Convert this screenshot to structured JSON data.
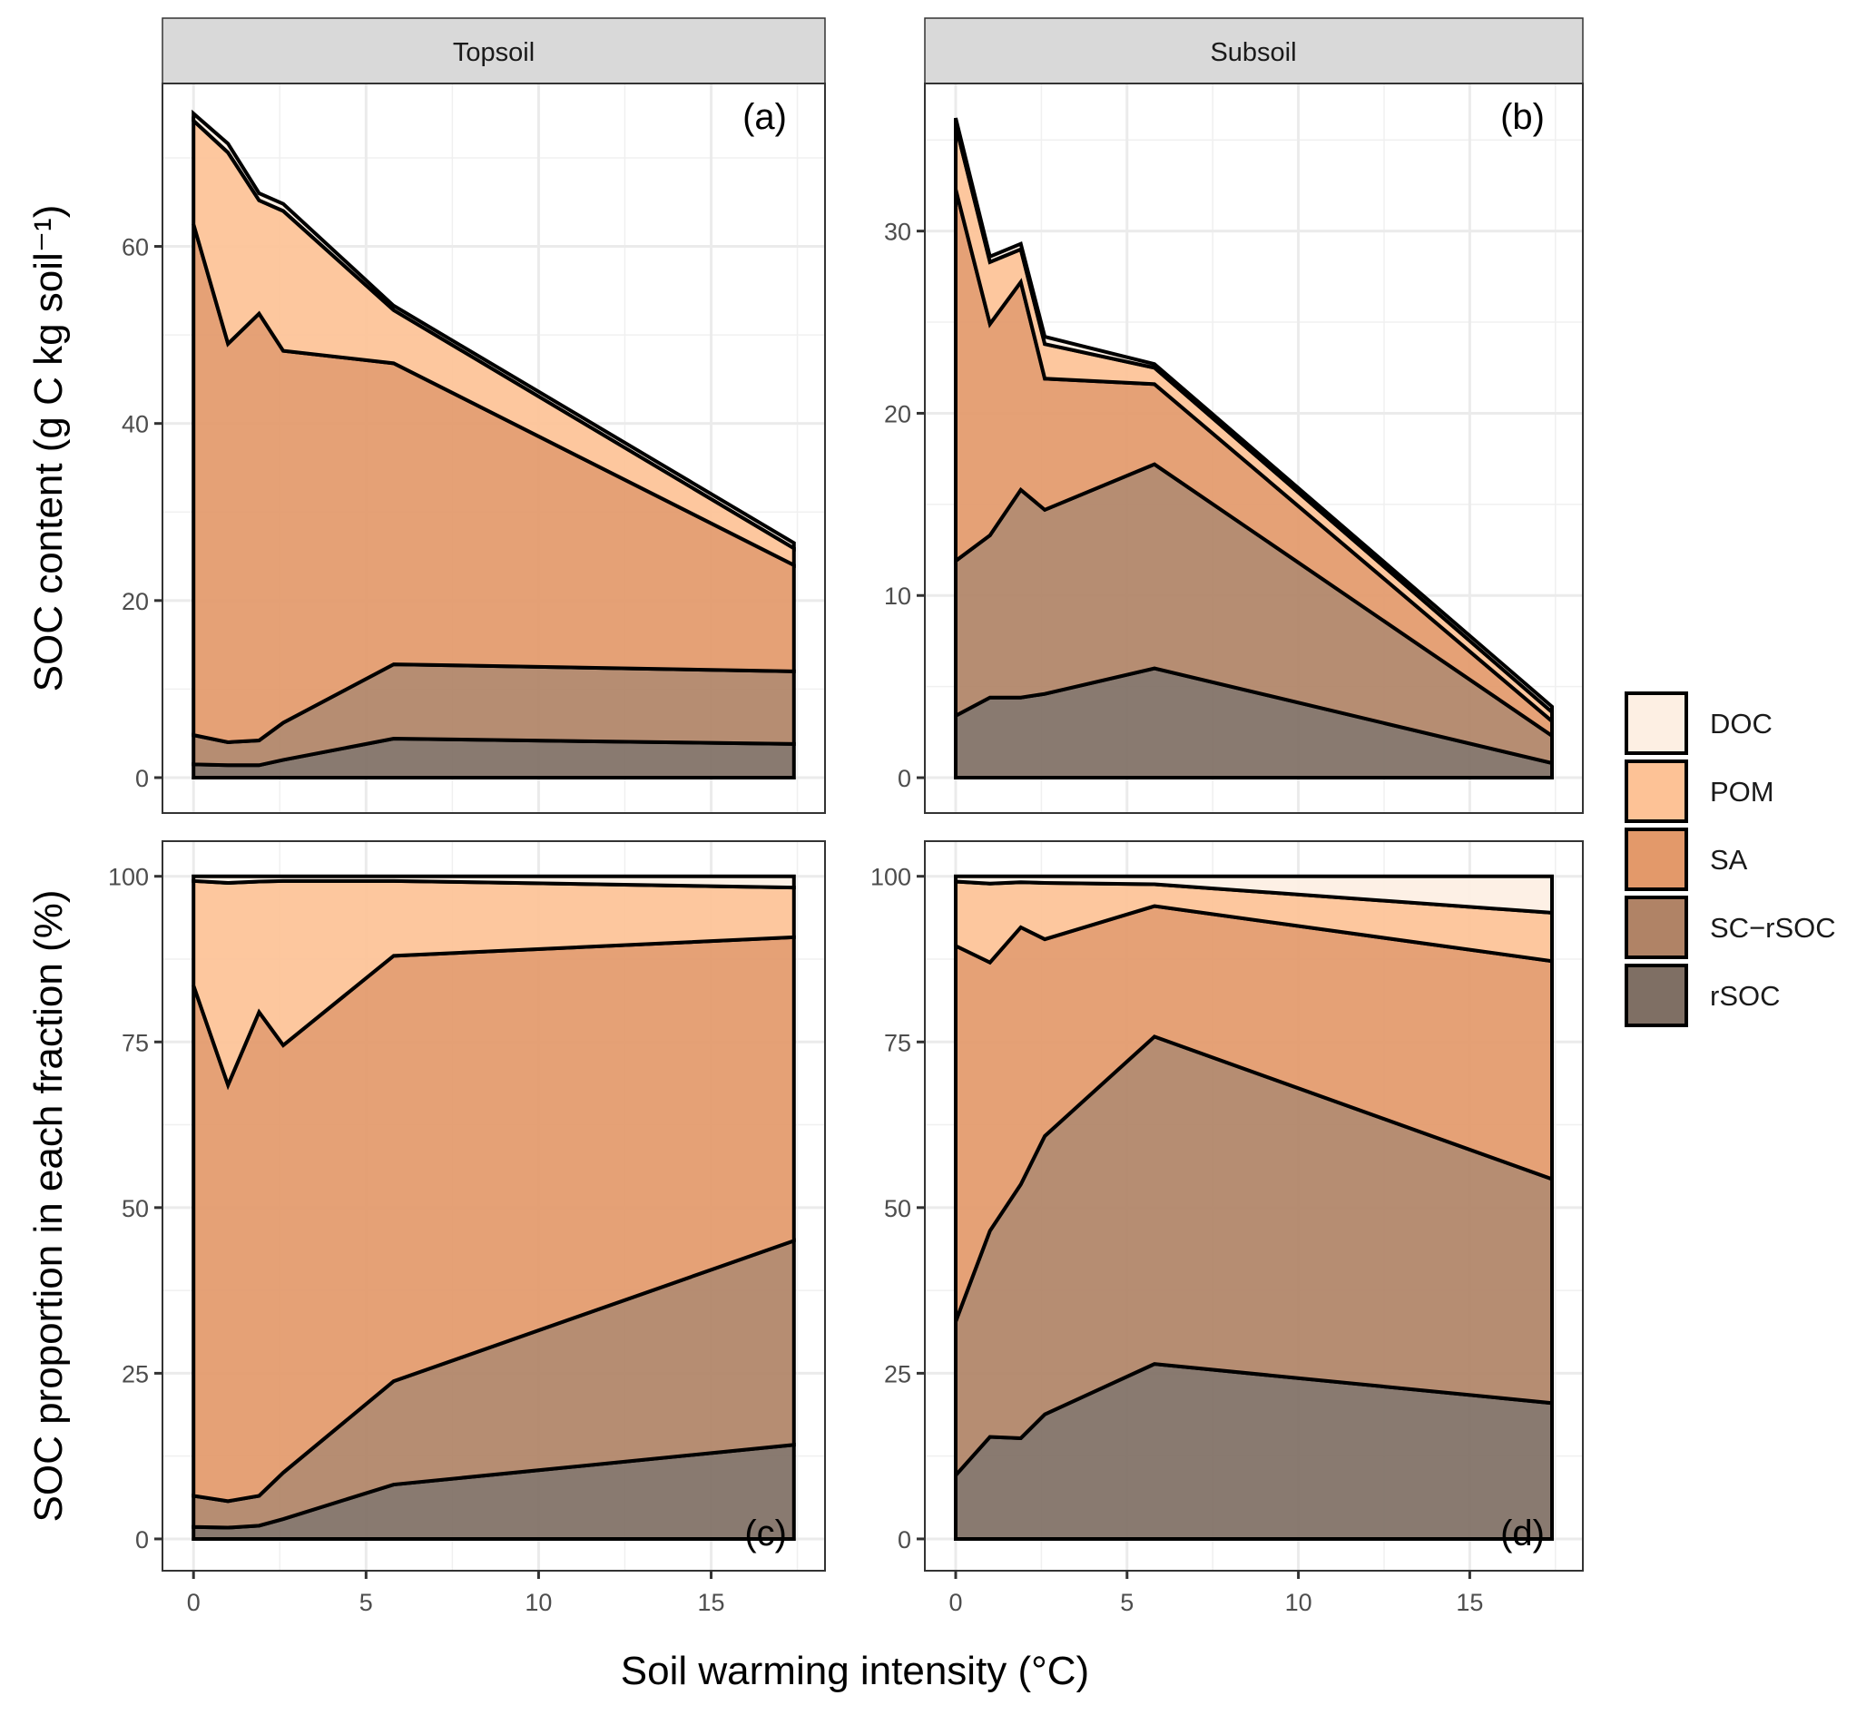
{
  "chart_data": {
    "type": "area",
    "stacked": true,
    "xlabel": "Soil warming intensity (°C)",
    "ylabel_top": "SOC content (g C kg soil⁻¹)",
    "ylabel_bottom": "SOC proportion in each fraction (%)",
    "xlim": [
      -0.9,
      18.3
    ],
    "x_ticks": [
      0,
      5,
      10,
      15
    ],
    "grid": true,
    "legend_placement": "right",
    "legend": [
      {
        "name": "DOC",
        "color": "#fdefe3"
      },
      {
        "name": "POM",
        "color": "#fdc296"
      },
      {
        "name": "SA",
        "color": "#e3996a"
      },
      {
        "name": "SC−rSOC",
        "color": "#b08366"
      },
      {
        "name": "rSOC",
        "color": "#7f6f64"
      }
    ],
    "x": [
      0,
      1,
      1.9,
      2.6,
      5.8,
      17.4
    ],
    "panels": [
      {
        "tag": "(a)",
        "strip": "Topsoil",
        "row": "content",
        "ylim": [
          -4,
          78.4
        ],
        "y_ticks": [
          0,
          20,
          40,
          60
        ],
        "series": [
          {
            "name": "rSOC",
            "values": [
              1.5,
              1.4,
              1.4,
              2.0,
              4.4,
              3.8
            ]
          },
          {
            "name": "SC−rSOC",
            "values": [
              3.3,
              2.6,
              2.8,
              4.2,
              8.4,
              8.2
            ]
          },
          {
            "name": "SA",
            "values": [
              57.7,
              45.0,
              48.2,
              42.0,
              34.0,
              12.0
            ]
          },
          {
            "name": "POM",
            "values": [
              11.7,
              21.6,
              12.8,
              15.8,
              6.0,
              1.9
            ]
          },
          {
            "name": "DOC",
            "values": [
              0.8,
              1.0,
              0.8,
              0.8,
              0.5,
              0.6
            ]
          }
        ]
      },
      {
        "tag": "(b)",
        "strip": "Subsoil",
        "row": "content",
        "ylim": [
          -1.94,
          38.1
        ],
        "y_ticks": [
          0,
          10,
          20,
          30
        ],
        "series": [
          {
            "name": "rSOC",
            "values": [
              3.4,
              4.4,
              4.4,
              4.6,
              6.0,
              0.8
            ]
          },
          {
            "name": "SC−rSOC",
            "values": [
              8.5,
              8.9,
              11.4,
              10.1,
              11.2,
              1.5
            ]
          },
          {
            "name": "SA",
            "values": [
              20.4,
              11.6,
              11.4,
              7.2,
              4.4,
              0.8
            ]
          },
          {
            "name": "POM",
            "values": [
              3.5,
              3.4,
              1.8,
              1.9,
              0.9,
              0.5
            ]
          },
          {
            "name": "DOC",
            "values": [
              0.4,
              0.3,
              0.3,
              0.4,
              0.2,
              0.3
            ]
          }
        ]
      },
      {
        "tag": "(c)",
        "strip": "Topsoil",
        "row": "proportion",
        "ylim": [
          -4.8,
          105.3
        ],
        "y_ticks": [
          0,
          25,
          50,
          75,
          100
        ],
        "series": [
          {
            "name": "rSOC",
            "values": [
              1.8,
              1.7,
              2.0,
              3.0,
              8.2,
              14.2
            ]
          },
          {
            "name": "SC−rSOC",
            "values": [
              4.7,
              4.0,
              4.5,
              7.0,
              15.6,
              30.8
            ]
          },
          {
            "name": "SA",
            "values": [
              77.0,
              62.8,
              73.0,
              64.5,
              64.2,
              45.8
            ]
          },
          {
            "name": "POM",
            "values": [
              15.8,
              30.5,
              19.7,
              24.8,
              11.3,
              7.5
            ]
          },
          {
            "name": "DOC",
            "values": [
              0.7,
              1.0,
              0.8,
              0.7,
              0.7,
              1.7
            ]
          }
        ]
      },
      {
        "tag": "(d)",
        "strip": "Subsoil",
        "row": "proportion",
        "ylim": [
          -4.8,
          105.3
        ],
        "y_ticks": [
          0,
          25,
          50,
          75,
          100
        ],
        "series": [
          {
            "name": "rSOC",
            "values": [
              9.6,
              15.4,
              15.2,
              18.8,
              26.4,
              20.5
            ]
          },
          {
            "name": "SC−rSOC",
            "values": [
              23.2,
              31.1,
              38.3,
              42.0,
              49.4,
              33.8
            ]
          },
          {
            "name": "SA",
            "values": [
              56.7,
              40.5,
              38.8,
              29.7,
              19.7,
              32.9
            ]
          },
          {
            "name": "POM",
            "values": [
              9.7,
              11.9,
              6.8,
              8.5,
              3.3,
              7.3
            ]
          },
          {
            "name": "DOC",
            "values": [
              0.8,
              1.1,
              0.9,
              1.0,
              1.2,
              5.5
            ]
          }
        ]
      }
    ]
  }
}
